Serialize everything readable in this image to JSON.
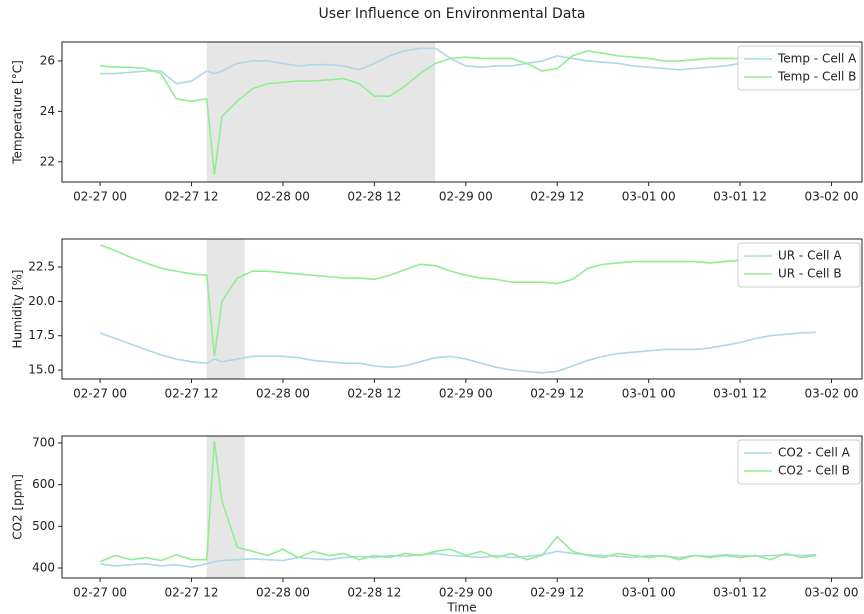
{
  "title": "User Influence on Environmental Data",
  "chart_data": [
    {
      "type": "line",
      "ylabel": "Temperature [°C]",
      "x": [
        "02-27 00",
        "02-27 02",
        "02-27 04",
        "02-27 06",
        "02-27 08",
        "02-27 10",
        "02-27 12",
        "02-27 14",
        "02-27 15",
        "02-27 16",
        "02-27 18",
        "02-27 20",
        "02-27 22",
        "02-28 00",
        "02-28 02",
        "02-28 04",
        "02-28 06",
        "02-28 08",
        "02-28 10",
        "02-28 12",
        "02-28 14",
        "02-28 16",
        "02-28 18",
        "02-28 20",
        "02-28 22",
        "02-29 00",
        "02-29 02",
        "02-29 04",
        "02-29 06",
        "02-29 08",
        "02-29 10",
        "02-29 12",
        "02-29 14",
        "02-29 16",
        "02-29 18",
        "02-29 20",
        "02-29 22",
        "03-01 00",
        "03-01 02",
        "03-01 04",
        "03-01 06",
        "03-01 08",
        "03-01 10",
        "03-01 12",
        "03-01 14",
        "03-01 16",
        "03-01 18",
        "03-01 20",
        "03-01 22"
      ],
      "series": [
        {
          "name": "Temp - Cell A",
          "color": "#add8e6",
          "values": [
            25.5,
            25.5,
            25.55,
            25.6,
            25.6,
            25.1,
            25.2,
            25.6,
            25.5,
            25.6,
            25.9,
            26.0,
            26.0,
            25.9,
            25.8,
            25.85,
            25.85,
            25.8,
            25.65,
            25.9,
            26.2,
            26.4,
            26.5,
            26.5,
            26.1,
            25.8,
            25.75,
            25.8,
            25.8,
            25.9,
            26.0,
            26.2,
            26.1,
            26.0,
            25.95,
            25.9,
            25.8,
            25.75,
            25.7,
            25.65,
            25.7,
            25.75,
            25.8,
            25.9,
            25.95,
            26.0,
            26.0,
            26.05,
            26.1
          ]
        },
        {
          "name": "Temp - Cell B",
          "color": "#90ee90",
          "values": [
            25.8,
            25.75,
            25.75,
            25.7,
            25.5,
            24.5,
            24.4,
            24.5,
            21.5,
            23.8,
            24.4,
            24.9,
            25.1,
            25.15,
            25.2,
            25.2,
            25.25,
            25.3,
            25.1,
            24.6,
            24.6,
            25.0,
            25.5,
            25.9,
            26.1,
            26.15,
            26.1,
            26.1,
            26.1,
            25.9,
            25.6,
            25.7,
            26.2,
            26.4,
            26.3,
            26.2,
            26.15,
            26.1,
            26.0,
            26.0,
            26.05,
            26.1,
            26.1,
            26.1,
            26.15,
            26.2,
            26.2,
            26.2,
            26.2
          ]
        }
      ],
      "shaded": [
        "02-27 14",
        "02-28 20"
      ],
      "xlim": [
        "02-26 19",
        "03-02 04"
      ],
      "xticks": [
        "02-27 00",
        "02-27 12",
        "02-28 00",
        "02-28 12",
        "02-29 00",
        "02-29 12",
        "03-01 00",
        "03-01 12",
        "03-02 00"
      ],
      "ylim": [
        21.2,
        26.75
      ],
      "yticks": [
        22,
        24,
        26
      ],
      "legend": "upper right"
    },
    {
      "type": "line",
      "ylabel": "Humidity [%]",
      "x": [
        "02-27 00",
        "02-27 02",
        "02-27 04",
        "02-27 06",
        "02-27 08",
        "02-27 10",
        "02-27 12",
        "02-27 14",
        "02-27 15",
        "02-27 16",
        "02-27 18",
        "02-27 20",
        "02-27 22",
        "02-28 00",
        "02-28 02",
        "02-28 04",
        "02-28 06",
        "02-28 08",
        "02-28 10",
        "02-28 12",
        "02-28 14",
        "02-28 16",
        "02-28 18",
        "02-28 20",
        "02-28 22",
        "02-29 00",
        "02-29 02",
        "02-29 04",
        "02-29 06",
        "02-29 08",
        "02-29 10",
        "02-29 12",
        "02-29 14",
        "02-29 16",
        "02-29 18",
        "02-29 20",
        "02-29 22",
        "03-01 00",
        "03-01 02",
        "03-01 04",
        "03-01 06",
        "03-01 08",
        "03-01 10",
        "03-01 12",
        "03-01 14",
        "03-01 16",
        "03-01 18",
        "03-01 20",
        "03-01 22"
      ],
      "series": [
        {
          "name": "UR - Cell A",
          "color": "#add8e6",
          "values": [
            17.7,
            17.3,
            16.9,
            16.5,
            16.1,
            15.8,
            15.6,
            15.5,
            15.8,
            15.6,
            15.8,
            16.0,
            16.0,
            16.0,
            15.9,
            15.7,
            15.6,
            15.5,
            15.5,
            15.3,
            15.2,
            15.3,
            15.6,
            15.9,
            16.0,
            15.8,
            15.5,
            15.2,
            15.0,
            14.9,
            14.8,
            14.9,
            15.3,
            15.7,
            16.0,
            16.2,
            16.3,
            16.4,
            16.5,
            16.5,
            16.5,
            16.6,
            16.8,
            17.0,
            17.3,
            17.5,
            17.6,
            17.7,
            17.75
          ]
        },
        {
          "name": "UR - Cell B",
          "color": "#90ee90",
          "values": [
            24.1,
            23.7,
            23.2,
            22.8,
            22.4,
            22.2,
            22.0,
            21.9,
            16.0,
            20.0,
            21.7,
            22.2,
            22.2,
            22.1,
            22.0,
            21.9,
            21.8,
            21.7,
            21.7,
            21.6,
            21.9,
            22.3,
            22.7,
            22.6,
            22.2,
            21.9,
            21.7,
            21.6,
            21.4,
            21.4,
            21.4,
            21.3,
            21.6,
            22.4,
            22.7,
            22.8,
            22.9,
            22.9,
            22.9,
            22.9,
            22.9,
            22.8,
            22.9,
            23.0,
            23.2,
            23.4,
            23.5,
            23.6,
            23.7
          ]
        }
      ],
      "shaded": [
        "02-27 14",
        "02-27 19"
      ],
      "xlim": [
        "02-26 19",
        "03-02 04"
      ],
      "xticks": [
        "02-27 00",
        "02-27 12",
        "02-28 00",
        "02-28 12",
        "02-29 00",
        "02-29 12",
        "03-01 00",
        "03-01 12",
        "03-02 00"
      ],
      "ylim": [
        14.35,
        24.54
      ],
      "yticks": [
        {
          "value": 15,
          "label": "15.0"
        },
        17.5,
        {
          "value": 20,
          "label": "20.0"
        },
        22.5
      ],
      "legend": "upper right"
    },
    {
      "type": "line",
      "ylabel": "CO2 [ppm]",
      "xlabel": "Time",
      "x": [
        "02-27 00",
        "02-27 02",
        "02-27 04",
        "02-27 06",
        "02-27 08",
        "02-27 10",
        "02-27 12",
        "02-27 14",
        "02-27 15",
        "02-27 16",
        "02-27 18",
        "02-27 20",
        "02-27 22",
        "02-28 00",
        "02-28 02",
        "02-28 04",
        "02-28 06",
        "02-28 08",
        "02-28 10",
        "02-28 12",
        "02-28 14",
        "02-28 16",
        "02-28 18",
        "02-28 20",
        "02-28 22",
        "02-29 00",
        "02-29 02",
        "02-29 04",
        "02-29 06",
        "02-29 08",
        "02-29 10",
        "02-29 12",
        "02-29 14",
        "02-29 16",
        "02-29 18",
        "02-29 20",
        "02-29 22",
        "03-01 00",
        "03-01 02",
        "03-01 04",
        "03-01 06",
        "03-01 08",
        "03-01 10",
        "03-01 12",
        "03-01 14",
        "03-01 16",
        "03-01 18",
        "03-01 20",
        "03-01 22"
      ],
      "series": [
        {
          "name": "CO2 - Cell A",
          "color": "#add8e6",
          "values": [
            410,
            405,
            408,
            410,
            405,
            408,
            402,
            410,
            415,
            418,
            420,
            422,
            420,
            418,
            425,
            422,
            420,
            425,
            428,
            425,
            430,
            428,
            432,
            435,
            430,
            428,
            425,
            430,
            425,
            428,
            432,
            440,
            435,
            432,
            430,
            428,
            425,
            430,
            428,
            425,
            430,
            428,
            432,
            430,
            428,
            430,
            432,
            430,
            432
          ]
        },
        {
          "name": "CO2 - Cell B",
          "color": "#90ee90",
          "values": [
            415,
            430,
            420,
            425,
            418,
            432,
            420,
            420,
            705,
            560,
            450,
            440,
            430,
            445,
            425,
            440,
            430,
            435,
            420,
            430,
            425,
            435,
            430,
            440,
            445,
            430,
            440,
            425,
            435,
            420,
            430,
            475,
            440,
            430,
            425,
            435,
            430,
            425,
            430,
            420,
            430,
            425,
            430,
            425,
            430,
            420,
            435,
            425,
            430
          ]
        }
      ],
      "shaded": [
        "02-27 14",
        "02-27 19"
      ],
      "xlim": [
        "02-26 19",
        "03-02 04"
      ],
      "xticks": [
        "02-27 00",
        "02-27 12",
        "02-28 00",
        "02-28 12",
        "02-29 00",
        "02-29 12",
        "03-01 00",
        "03-01 12",
        "03-02 00"
      ],
      "ylim": [
        376,
        716.8
      ],
      "yticks": [
        400,
        500,
        600,
        700
      ],
      "legend": "upper right"
    }
  ]
}
